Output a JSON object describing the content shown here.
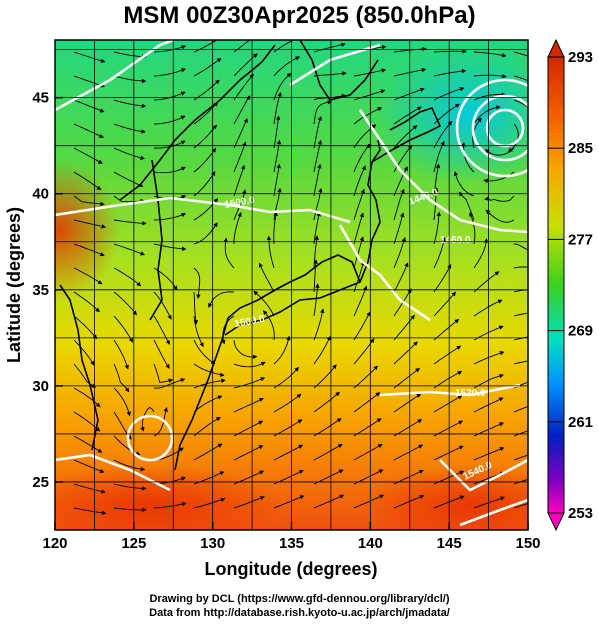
{
  "title": "MSM 00Z30Apr2025 (850.0hPa)",
  "map": {
    "lon_range": [
      120,
      150
    ],
    "lat_range": [
      22.5,
      48
    ],
    "x_ticks": [
      "120",
      "125",
      "130",
      "135",
      "140",
      "145",
      "150"
    ],
    "y_ticks": [
      "25",
      "30",
      "35",
      "40",
      "45"
    ],
    "xlabel": "Longitude (degrees)",
    "ylabel": "Latitude  (degrees)",
    "contour_labels": [
      "1500.0",
      "1500.0",
      "1440.0",
      "1460.0",
      "1520.0",
      "1540.0",
      "1560.0"
    ]
  },
  "colorbar": {
    "labels": [
      "293",
      "285",
      "277",
      "269",
      "261",
      "253"
    ],
    "colors": [
      "#d32800",
      "#f7a800",
      "#c8e000",
      "#3ad020",
      "#00e0c0",
      "#0090ff",
      "#0020c0",
      "#8000c0",
      "#ff00c0"
    ]
  },
  "credits": {
    "line1": "Drawing by DCL (https://www.gfd-dennou.org/library/dcl/)",
    "line2": "Data from http://database.rish.kyoto-u.ac.jp/arch/jmadata/"
  }
}
